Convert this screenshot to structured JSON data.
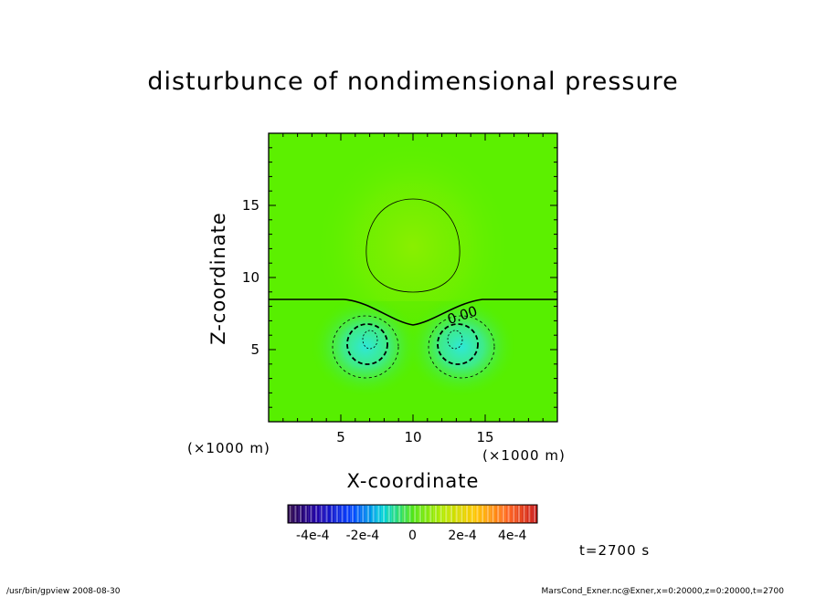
{
  "chart_data": {
    "type": "heatmap",
    "title": "disturbunce of nondimensional pressure",
    "xlabel": "X-coordinate",
    "ylabel": "Z-coordinate",
    "x_unit": "(×1000 m)",
    "y_unit": "(×1000 m)",
    "xlim": [
      0,
      20
    ],
    "ylim": [
      0,
      20
    ],
    "x_ticks": [
      "5",
      "10",
      "15"
    ],
    "y_ticks": [
      "5",
      "10",
      "15"
    ],
    "contour_label": "0.00",
    "colorbar": {
      "range": [
        -0.0005,
        0.0005
      ],
      "tick_labels": [
        "-4e-4",
        "-2e-4",
        "0",
        "2e-4",
        "4e-4"
      ],
      "tick_values": [
        -0.0004,
        -0.0002,
        0,
        0.0002,
        0.0004
      ]
    },
    "features": [
      {
        "kind": "negative-minimum",
        "x": 7,
        "z": 5.8
      },
      {
        "kind": "negative-minimum",
        "x": 13,
        "z": 5.8
      },
      {
        "kind": "positive-maximum",
        "x": 10,
        "z": 11.5
      }
    ],
    "grid": false,
    "legend": "colorbar below plot"
  },
  "info": {
    "time": "t=2700 s",
    "footer_left": "/usr/bin/gpview   2008-08-30",
    "footer_right": "MarsCond_Exner.nc@Exner,x=0:20000,z=0:20000,t=2700"
  },
  "colors": {
    "field_base": "#5cf000",
    "field_high": "#86ef00",
    "field_low": "#38e8b0",
    "contour": "#000000"
  }
}
